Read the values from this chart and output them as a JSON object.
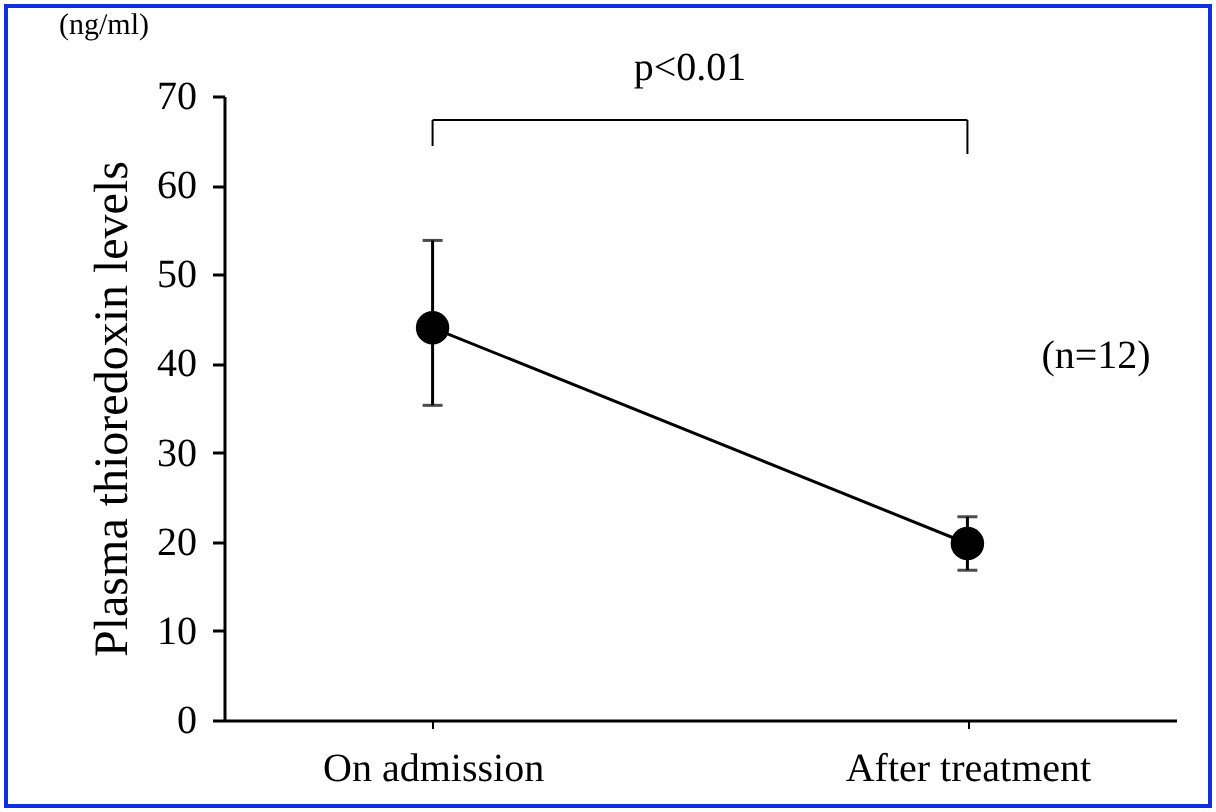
{
  "chart_data": {
    "type": "line",
    "ylabel": "Plasma thioredoxin levels",
    "categories": [
      "On admission",
      "After treatment"
    ],
    "series": [
      {
        "color": "#000000",
        "values": [
          44,
          19.8
        ],
        "errors": [
          [
            35.3,
            53.8
          ],
          [
            16.8,
            22.8
          ]
        ]
      }
    ],
    "ylim": [
      0,
      70
    ],
    "yticks": [
      0,
      10,
      20,
      30,
      40,
      50,
      60,
      70
    ],
    "marker": "circle",
    "line_style": "solid",
    "grid": false,
    "annotations": [
      "(ng/ml)",
      "p<0.01",
      "(n=12)"
    ]
  }
}
